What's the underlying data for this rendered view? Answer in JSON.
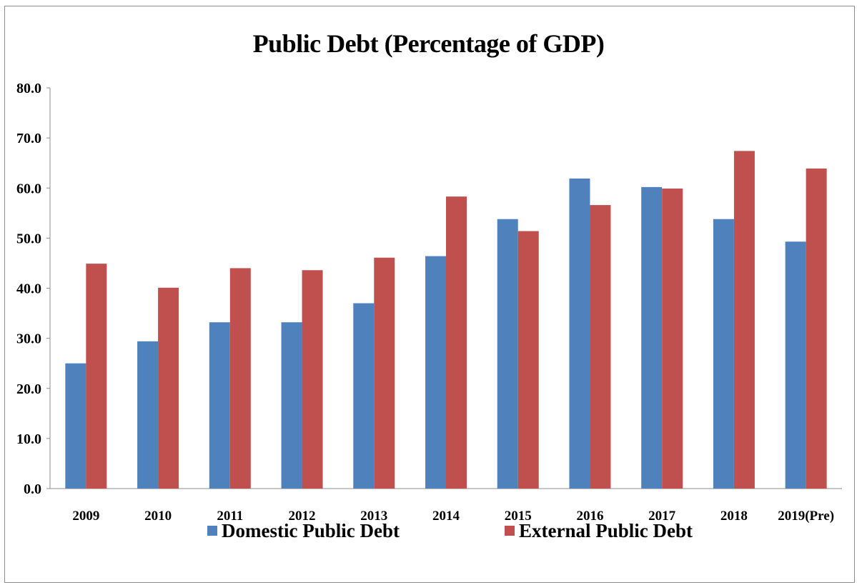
{
  "chart_data": {
    "type": "bar",
    "title": "Public Debt  (Percentage of GDP)",
    "xlabel": "",
    "ylabel": "",
    "ylim": [
      0,
      80
    ],
    "yticks": [
      "0.0",
      "10.0",
      "20.0",
      "30.0",
      "40.0",
      "50.0",
      "60.0",
      "70.0",
      "80.0"
    ],
    "grid": false,
    "legend_position": "bottom",
    "categories": [
      "2009",
      "2010",
      "2011",
      "2012",
      "2013",
      "2014",
      "2015",
      "2016",
      "2017",
      "2018",
      "2019(Pre)"
    ],
    "series": [
      {
        "name": "Domestic Public Debt",
        "color": "#4f81bd",
        "values": [
          25.0,
          29.4,
          33.2,
          33.2,
          37.0,
          46.4,
          53.8,
          61.9,
          60.2,
          53.8,
          49.3
        ]
      },
      {
        "name": "External Public Debt",
        "color": "#c0504d",
        "values": [
          44.9,
          40.1,
          44.0,
          43.6,
          46.1,
          58.3,
          51.4,
          56.6,
          59.9,
          67.4,
          63.9
        ]
      }
    ]
  }
}
